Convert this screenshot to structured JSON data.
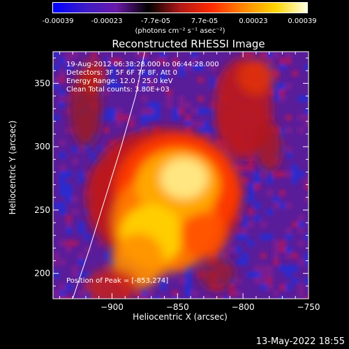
{
  "colorbar": {
    "ticks": [
      "-0.00039",
      "-0.00023",
      "-7.7e-05",
      "7.7e-05",
      "0.00023",
      "0.00039"
    ],
    "unit_label": "(photons cm⁻² s⁻¹ asec⁻²)",
    "colors": [
      "#0000ff",
      "#3c1cc8",
      "#6a1aa8",
      "#000000",
      "#b01818",
      "#ff2a00",
      "#ff8800",
      "#ffd400",
      "#ffffe0"
    ]
  },
  "info": {
    "time_range": "19-Aug-2012 06:38:28.000 to 06:44:28.000",
    "detectors": "Detectors: 3F 5F 6F 7F 8F, Att 0",
    "energy": "Energy Range: 12.0 - 25.0 keV",
    "clean": "Clean     Total counts: 3.80E+03",
    "peak": "Position of Peak = [-853,274]"
  },
  "timestamp": "13-May-2022 18:55",
  "chart_data": {
    "type": "heatmap",
    "title": "Reconstructed RHESSI Image",
    "xlabel": "Heliocentric X (arcsec)",
    "ylabel": "Heliocentric Y (arcsec)",
    "xlim": [
      -945,
      -750
    ],
    "ylim": [
      180,
      375
    ],
    "xticks": [
      -900,
      -850,
      -800,
      -750
    ],
    "yticks": [
      200,
      250,
      300,
      350
    ],
    "xtick_labels": [
      "−900",
      "−850",
      "−800",
      "−750"
    ],
    "ytick_labels": [
      "200",
      "250",
      "300",
      "350"
    ],
    "peak_position": [
      -853,
      274
    ],
    "limb_curve": [
      [
        -930,
        180
      ],
      [
        -917,
        220
      ],
      [
        -905,
        260
      ],
      [
        -893,
        300
      ],
      [
        -882,
        340
      ],
      [
        -875,
        375
      ]
    ]
  }
}
